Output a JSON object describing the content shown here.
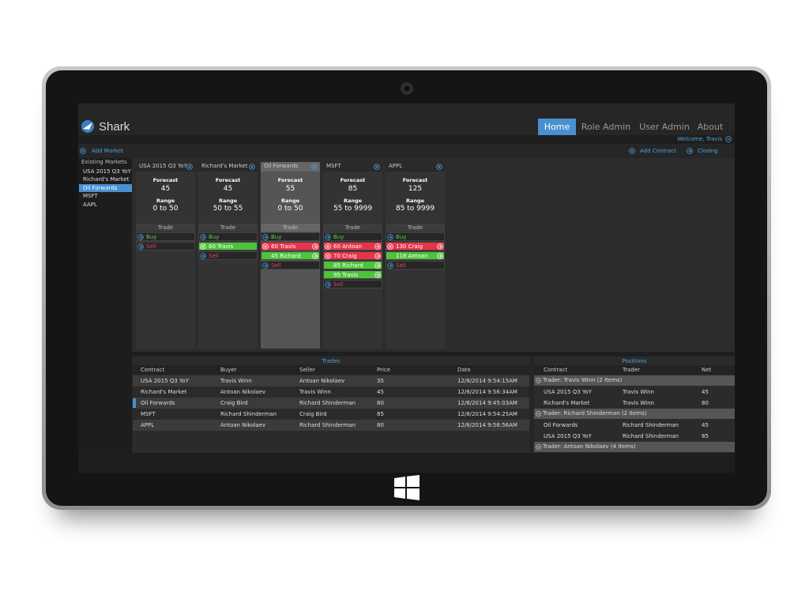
{
  "header": {
    "logo": "Shark",
    "nav": [
      "Home",
      "Role Admin",
      "User Admin",
      "About"
    ],
    "welcome": "Welcome, Travis"
  },
  "toolbar": {
    "add_market": "Add Market",
    "add_contract": "Add Contract",
    "closing": "Closing"
  },
  "sidebar": {
    "title": "Existing Markets",
    "items": [
      "USA 2015 Q3 YoY",
      "Richard's Market",
      "Oil Forwards",
      "MSFT",
      "AAPL"
    ]
  },
  "labels": {
    "forecast": "Forecast",
    "range": "Range",
    "trade": "Trade",
    "buy": "Buy",
    "sell": "Sell"
  },
  "markets": [
    {
      "name": "USA 2015 Q3 YoY",
      "forecast": "45",
      "range": "0 to 50",
      "selected": false,
      "orders": []
    },
    {
      "name": "Richard's Market",
      "forecast": "45",
      "range": "50 to 55",
      "selected": false,
      "orders": [
        {
          "text": "60 Travis",
          "color": "#4ec23a"
        }
      ]
    },
    {
      "name": "Oil Forwards",
      "forecast": "55",
      "range": "0 to 50",
      "selected": true,
      "orders": [
        {
          "text": "60 Travis",
          "color": "#e8334a"
        },
        {
          "text": "45 Richard",
          "color": "#4ec23a"
        }
      ]
    },
    {
      "name": "MSFT",
      "forecast": "85",
      "range": "55 to 9999",
      "selected": false,
      "orders": [
        {
          "text": "60 Antoan",
          "color": "#e8334a"
        },
        {
          "text": "70 Craig",
          "color": "#e8334a"
        },
        {
          "text": "85 Richard",
          "color": "#4ec23a"
        },
        {
          "text": "95 Travis",
          "color": "#4ec23a"
        }
      ]
    },
    {
      "name": "APPL",
      "forecast": "125",
      "range": "85 to 9999",
      "selected": false,
      "orders": [
        {
          "text": "130 Craig",
          "color": "#e8334a"
        },
        {
          "text": "118 Antoan",
          "color": "#4ec23a"
        }
      ]
    }
  ],
  "trades": {
    "title": "Trades",
    "columns": [
      "Contract",
      "Buyer",
      "Seller",
      "Price",
      "Date"
    ],
    "rows": [
      [
        "USA 2015 Q3 YoY",
        "Travis Winn",
        "Antoan Nikolaev",
        "35",
        "12/8/2014 9:54:15AM"
      ],
      [
        "Richard's Market",
        "Antoan Nikolaev",
        "Travis Winn",
        "45",
        "12/8/2014 9:56:34AM"
      ],
      [
        "Oil Forwards",
        "Craig Bird",
        "Richard Shinderman",
        "80",
        "12/8/2014 9:45:03AM"
      ],
      [
        "MSFT",
        "Richard Shinderman",
        "Craig Bird",
        "85",
        "12/8/2014 9:54:25AM"
      ],
      [
        "APPL",
        "Antoan Nikolaev",
        "Richard Shinderman",
        "80",
        "12/8/2014 9:56:56AM"
      ]
    ]
  },
  "positions": {
    "title": "Positions",
    "columns": [
      "Contract",
      "Trader",
      "Net"
    ],
    "groups": [
      {
        "title": "Trader: Travis Winn (2 Items)",
        "rows": [
          [
            "USA 2015 Q3 YoY",
            "Travis Winn",
            "45"
          ],
          [
            "Richard's Market",
            "Travis Winn",
            "80"
          ]
        ]
      },
      {
        "title": "Trader: Richard Shinderman (2 Items)",
        "rows": [
          [
            "Oil Forwards",
            "Richard Shinderman",
            "45"
          ],
          [
            "USA 2015 Q3 YoY",
            "Richard Shinderman",
            "85"
          ]
        ]
      },
      {
        "title": "Trader: Antoan Nikolaev (4 Items)",
        "rows": []
      }
    ]
  }
}
